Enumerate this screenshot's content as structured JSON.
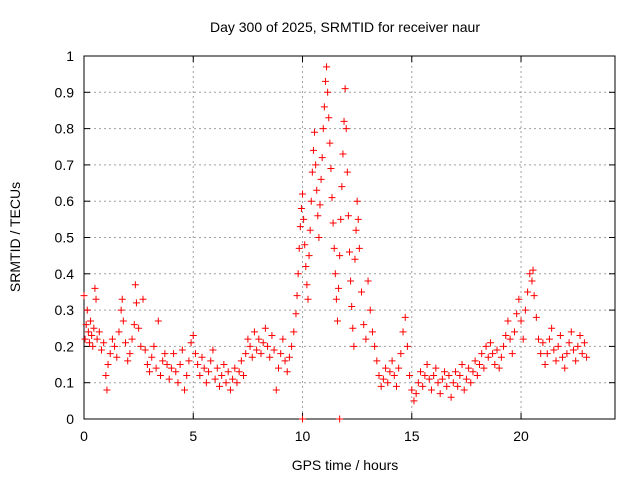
{
  "chart_data": {
    "type": "scatter",
    "title": "Day 300 of 2025, SRMTID for receiver naur",
    "xlabel": "GPS time / hours",
    "ylabel": "SRMTID / TECUs",
    "xlim": [
      0,
      24.3
    ],
    "ylim": [
      0,
      1
    ],
    "xticks": [
      0,
      5,
      10,
      15,
      20
    ],
    "yticks": [
      0,
      0.1,
      0.2,
      0.3,
      0.4,
      0.5,
      0.6,
      0.7,
      0.8,
      0.9,
      1
    ],
    "xtick_labels": [
      "0",
      "5",
      "10",
      "15",
      "20"
    ],
    "ytick_labels": [
      "0",
      "0.1",
      "0.2",
      "0.3",
      "0.4",
      "0.5",
      "0.6",
      "0.7",
      "0.8",
      "0.9",
      "1"
    ],
    "grid": true,
    "marker": "+",
    "color": "#ff0000",
    "series": [
      {
        "name": "SRMTID",
        "points": [
          [
            0.0,
            0.34
          ],
          [
            0.05,
            0.22
          ],
          [
            0.1,
            0.26
          ],
          [
            0.15,
            0.3
          ],
          [
            0.2,
            0.24
          ],
          [
            0.25,
            0.21
          ],
          [
            0.3,
            0.27
          ],
          [
            0.35,
            0.23
          ],
          [
            0.4,
            0.2
          ],
          [
            0.45,
            0.25
          ],
          [
            0.5,
            0.36
          ],
          [
            0.55,
            0.33
          ],
          [
            0.6,
            0.22
          ],
          [
            0.7,
            0.24
          ],
          [
            0.8,
            0.19
          ],
          [
            0.9,
            0.21
          ],
          [
            1.0,
            0.12
          ],
          [
            1.05,
            0.08
          ],
          [
            1.1,
            0.15
          ],
          [
            1.2,
            0.18
          ],
          [
            1.3,
            0.22
          ],
          [
            1.4,
            0.2
          ],
          [
            1.5,
            0.17
          ],
          [
            1.6,
            0.24
          ],
          [
            1.7,
            0.3
          ],
          [
            1.75,
            0.33
          ],
          [
            1.8,
            0.27
          ],
          [
            1.9,
            0.21
          ],
          [
            2.0,
            0.16
          ],
          [
            2.1,
            0.18
          ],
          [
            2.2,
            0.22
          ],
          [
            2.3,
            0.26
          ],
          [
            2.35,
            0.37
          ],
          [
            2.4,
            0.32
          ],
          [
            2.5,
            0.25
          ],
          [
            2.6,
            0.2
          ],
          [
            2.7,
            0.33
          ],
          [
            2.8,
            0.19
          ],
          [
            2.9,
            0.15
          ],
          [
            3.0,
            0.13
          ],
          [
            3.1,
            0.17
          ],
          [
            3.2,
            0.2
          ],
          [
            3.3,
            0.14
          ],
          [
            3.4,
            0.27
          ],
          [
            3.5,
            0.12
          ],
          [
            3.6,
            0.16
          ],
          [
            3.7,
            0.18
          ],
          [
            3.8,
            0.15
          ],
          [
            3.9,
            0.11
          ],
          [
            4.0,
            0.14
          ],
          [
            4.1,
            0.18
          ],
          [
            4.2,
            0.13
          ],
          [
            4.3,
            0.1
          ],
          [
            4.4,
            0.15
          ],
          [
            4.5,
            0.19
          ],
          [
            4.6,
            0.08
          ],
          [
            4.7,
            0.12
          ],
          [
            4.8,
            0.16
          ],
          [
            4.9,
            0.21
          ],
          [
            5.0,
            0.23
          ],
          [
            5.1,
            0.18
          ],
          [
            5.2,
            0.15
          ],
          [
            5.3,
            0.12
          ],
          [
            5.4,
            0.17
          ],
          [
            5.5,
            0.14
          ],
          [
            5.6,
            0.1
          ],
          [
            5.7,
            0.13
          ],
          [
            5.8,
            0.16
          ],
          [
            5.9,
            0.19
          ],
          [
            6.0,
            0.11
          ],
          [
            6.1,
            0.14
          ],
          [
            6.2,
            0.09
          ],
          [
            6.3,
            0.12
          ],
          [
            6.4,
            0.15
          ],
          [
            6.5,
            0.1
          ],
          [
            6.6,
            0.13
          ],
          [
            6.7,
            0.08
          ],
          [
            6.8,
            0.11
          ],
          [
            6.9,
            0.14
          ],
          [
            7.0,
            0.1
          ],
          [
            7.1,
            0.13
          ],
          [
            7.2,
            0.16
          ],
          [
            7.3,
            0.12
          ],
          [
            7.4,
            0.18
          ],
          [
            7.5,
            0.22
          ],
          [
            7.6,
            0.2
          ],
          [
            7.7,
            0.17
          ],
          [
            7.8,
            0.24
          ],
          [
            7.9,
            0.19
          ],
          [
            8.0,
            0.22
          ],
          [
            8.1,
            0.18
          ],
          [
            8.2,
            0.21
          ],
          [
            8.3,
            0.25
          ],
          [
            8.4,
            0.2
          ],
          [
            8.5,
            0.17
          ],
          [
            8.6,
            0.23
          ],
          [
            8.7,
            0.19
          ],
          [
            8.8,
            0.08
          ],
          [
            8.9,
            0.14
          ],
          [
            9.0,
            0.18
          ],
          [
            9.1,
            0.22
          ],
          [
            9.2,
            0.16
          ],
          [
            9.3,
            0.13
          ],
          [
            9.4,
            0.17
          ],
          [
            9.5,
            0.2
          ],
          [
            9.6,
            0.24
          ],
          [
            9.7,
            0.29
          ],
          [
            9.75,
            0.34
          ],
          [
            9.8,
            0.4
          ],
          [
            9.85,
            0.47
          ],
          [
            9.9,
            0.53
          ],
          [
            9.95,
            0.58
          ],
          [
            10.0,
            0.62
          ],
          [
            10.05,
            0.55
          ],
          [
            10.1,
            0.48
          ],
          [
            10.15,
            0.42
          ],
          [
            10.2,
            0.37
          ],
          [
            10.25,
            0.33
          ],
          [
            10.3,
            0.45
          ],
          [
            10.35,
            0.52
          ],
          [
            10.4,
            0.6
          ],
          [
            10.45,
            0.68
          ],
          [
            10.5,
            0.74
          ],
          [
            10.55,
            0.79
          ],
          [
            10.6,
            0.7
          ],
          [
            10.65,
            0.63
          ],
          [
            10.7,
            0.56
          ],
          [
            10.75,
            0.5
          ],
          [
            10.8,
            0.59
          ],
          [
            10.85,
            0.66
          ],
          [
            10.9,
            0.72
          ],
          [
            10.95,
            0.8
          ],
          [
            11.0,
            0.86
          ],
          [
            11.05,
            0.93
          ],
          [
            11.1,
            0.97
          ],
          [
            11.15,
            0.9
          ],
          [
            11.2,
            0.83
          ],
          [
            11.25,
            0.76
          ],
          [
            11.3,
            0.69
          ],
          [
            11.35,
            0.61
          ],
          [
            11.4,
            0.54
          ],
          [
            11.45,
            0.47
          ],
          [
            11.5,
            0.4
          ],
          [
            11.55,
            0.33
          ],
          [
            11.6,
            0.27
          ],
          [
            11.65,
            0.36
          ],
          [
            11.7,
            0.45
          ],
          [
            11.75,
            0.55
          ],
          [
            11.8,
            0.64
          ],
          [
            11.85,
            0.73
          ],
          [
            11.9,
            0.82
          ],
          [
            11.95,
            0.91
          ],
          [
            12.0,
            0.8
          ],
          [
            12.05,
            0.68
          ],
          [
            12.1,
            0.56
          ],
          [
            12.15,
            0.46
          ],
          [
            12.2,
            0.38
          ],
          [
            12.25,
            0.31
          ],
          [
            12.3,
            0.25
          ],
          [
            12.35,
            0.2
          ],
          [
            12.4,
            0.44
          ],
          [
            12.45,
            0.52
          ],
          [
            12.5,
            0.6
          ],
          [
            12.55,
            0.55
          ],
          [
            12.6,
            0.47
          ],
          [
            12.7,
            0.35
          ],
          [
            12.8,
            0.26
          ],
          [
            12.9,
            0.22
          ],
          [
            13.0,
            0.38
          ],
          [
            13.1,
            0.3
          ],
          [
            13.2,
            0.24
          ],
          [
            13.3,
            0.2
          ],
          [
            13.4,
            0.16
          ],
          [
            13.5,
            0.12
          ],
          [
            13.6,
            0.09
          ],
          [
            13.7,
            0.11
          ],
          [
            13.8,
            0.14
          ],
          [
            13.9,
            0.1
          ],
          [
            14.0,
            0.13
          ],
          [
            14.1,
            0.16
          ],
          [
            14.2,
            0.12
          ],
          [
            14.3,
            0.09
          ],
          [
            14.4,
            0.14
          ],
          [
            14.5,
            0.18
          ],
          [
            14.6,
            0.24
          ],
          [
            14.7,
            0.28
          ],
          [
            14.8,
            0.2
          ],
          [
            14.9,
            0.12
          ],
          [
            15.0,
            0.08
          ],
          [
            15.1,
            0.05
          ],
          [
            15.2,
            0.07
          ],
          [
            15.3,
            0.1
          ],
          [
            15.4,
            0.13
          ],
          [
            15.5,
            0.09
          ],
          [
            15.6,
            0.12
          ],
          [
            15.7,
            0.15
          ],
          [
            15.8,
            0.11
          ],
          [
            15.9,
            0.08
          ],
          [
            16.0,
            0.12
          ],
          [
            16.1,
            0.14
          ],
          [
            16.2,
            0.1
          ],
          [
            16.3,
            0.07
          ],
          [
            16.4,
            0.11
          ],
          [
            16.5,
            0.13
          ],
          [
            16.6,
            0.09
          ],
          [
            16.7,
            0.12
          ],
          [
            16.8,
            0.06
          ],
          [
            16.9,
            0.1
          ],
          [
            17.0,
            0.13
          ],
          [
            17.1,
            0.09
          ],
          [
            17.2,
            0.12
          ],
          [
            17.3,
            0.15
          ],
          [
            17.4,
            0.08
          ],
          [
            17.5,
            0.11
          ],
          [
            17.6,
            0.14
          ],
          [
            17.7,
            0.1
          ],
          [
            17.8,
            0.13
          ],
          [
            17.9,
            0.16
          ],
          [
            18.0,
            0.12
          ],
          [
            18.1,
            0.15
          ],
          [
            18.2,
            0.18
          ],
          [
            18.3,
            0.14
          ],
          [
            18.4,
            0.2
          ],
          [
            18.5,
            0.17
          ],
          [
            18.6,
            0.21
          ],
          [
            18.7,
            0.18
          ],
          [
            18.8,
            0.15
          ],
          [
            18.9,
            0.19
          ],
          [
            19.0,
            0.14
          ],
          [
            19.1,
            0.17
          ],
          [
            19.2,
            0.2
          ],
          [
            19.3,
            0.23
          ],
          [
            19.4,
            0.27
          ],
          [
            19.5,
            0.22
          ],
          [
            19.6,
            0.18
          ],
          [
            19.7,
            0.24
          ],
          [
            19.8,
            0.29
          ],
          [
            19.9,
            0.33
          ],
          [
            20.0,
            0.27
          ],
          [
            20.1,
            0.22
          ],
          [
            20.2,
            0.3
          ],
          [
            20.3,
            0.35
          ],
          [
            20.4,
            0.4
          ],
          [
            20.5,
            0.38
          ],
          [
            20.55,
            0.41
          ],
          [
            20.6,
            0.34
          ],
          [
            20.7,
            0.28
          ],
          [
            20.8,
            0.22
          ],
          [
            20.9,
            0.18
          ],
          [
            21.0,
            0.21
          ],
          [
            21.1,
            0.15
          ],
          [
            21.2,
            0.18
          ],
          [
            21.3,
            0.22
          ],
          [
            21.4,
            0.25
          ],
          [
            21.5,
            0.19
          ],
          [
            21.6,
            0.16
          ],
          [
            21.7,
            0.2
          ],
          [
            21.8,
            0.23
          ],
          [
            21.9,
            0.17
          ],
          [
            22.0,
            0.14
          ],
          [
            22.1,
            0.18
          ],
          [
            22.2,
            0.21
          ],
          [
            22.3,
            0.24
          ],
          [
            22.4,
            0.19
          ],
          [
            22.5,
            0.16
          ],
          [
            22.6,
            0.2
          ],
          [
            22.7,
            0.23
          ],
          [
            22.8,
            0.18
          ],
          [
            22.9,
            0.21
          ],
          [
            23.0,
            0.17
          ],
          [
            10.0,
            0.0
          ],
          [
            11.7,
            0.0
          ]
        ]
      }
    ]
  }
}
